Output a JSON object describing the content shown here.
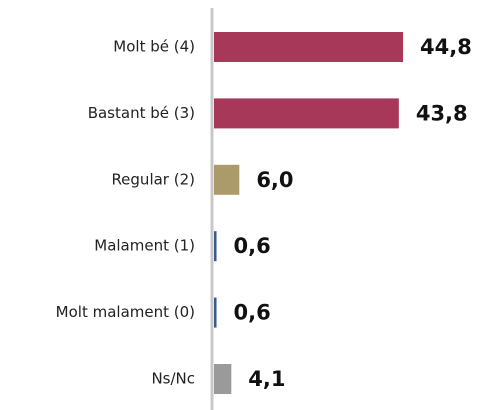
{
  "chart_data": {
    "type": "bar",
    "orientation": "horizontal",
    "categories": [
      "Molt bé (4)",
      "Bastant bé (3)",
      "Regular (2)",
      "Malament (1)",
      "Molt malament (0)",
      "Ns/Nc"
    ],
    "values": [
      44.8,
      43.8,
      6.0,
      0.6,
      0.6,
      4.1
    ],
    "value_labels": [
      "44,8",
      "43,8",
      "6,0",
      "0,6",
      "0,6",
      "4,1"
    ],
    "colors": [
      "#a8385a",
      "#a8385a",
      "#ab9b6b",
      "#3b5b8c",
      "#3b5b8c",
      "#9a9a9a"
    ]
  }
}
